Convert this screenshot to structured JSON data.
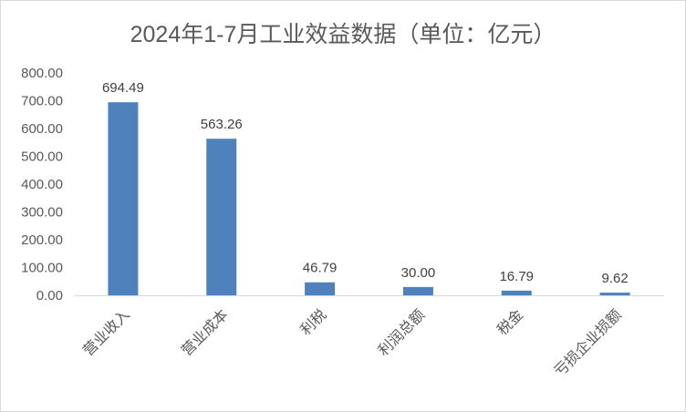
{
  "chart_data": {
    "type": "bar",
    "title": "2024年1-7月工业效益数据（单位：亿元）",
    "categories": [
      "营业收入",
      "营业成本",
      "利税",
      "利润总额",
      "税金",
      "亏损企业损额"
    ],
    "values": [
      694.49,
      563.26,
      46.79,
      30.0,
      16.79,
      9.62
    ],
    "data_labels": [
      "694.49",
      "563.26",
      "46.79",
      "30.00",
      "16.79",
      "9.62"
    ],
    "y_ticks": [
      "0.00",
      "100.00",
      "200.00",
      "300.00",
      "400.00",
      "500.00",
      "600.00",
      "700.00",
      "800.00"
    ],
    "ylim": [
      0,
      800
    ],
    "xlabel": "",
    "ylabel": "",
    "grid": false,
    "legend": "none",
    "bar_color": "#4f81bd"
  }
}
